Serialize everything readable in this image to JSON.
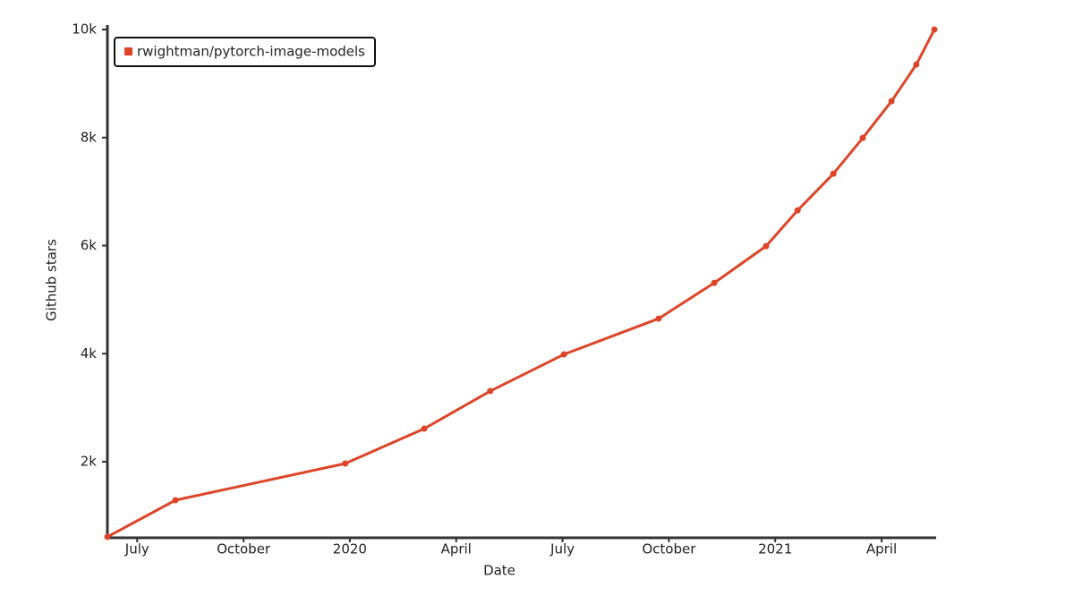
{
  "chart_data": {
    "type": "line",
    "x_label": "Date",
    "y_label": "Github stars",
    "series": [
      {
        "name": "rwightman/pytorch-image-models",
        "color": "#dd4528",
        "x": [
          -6.84,
          -4.92,
          -0.13,
          2.1,
          3.96,
          6.04,
          8.71,
          10.28,
          11.74,
          12.63,
          13.64,
          14.47,
          15.28,
          15.98,
          16.49
        ],
        "values": [
          609,
          1288,
          1967,
          2613,
          3308,
          3987,
          4649,
          5311,
          5990,
          6652,
          7331,
          7993,
          8672,
          9351,
          10000
        ]
      }
    ],
    "xlim": [
      -6.84,
      16.49
    ],
    "xticks": [
      {
        "value": -6,
        "label": "July"
      },
      {
        "value": -3,
        "label": "October"
      },
      {
        "value": 0,
        "label": "2020"
      },
      {
        "value": 3,
        "label": "April"
      },
      {
        "value": 6,
        "label": "July"
      },
      {
        "value": 9,
        "label": "October"
      },
      {
        "value": 12,
        "label": "2021"
      },
      {
        "value": 15,
        "label": "April"
      }
    ],
    "ylim": [
      609,
      10000
    ],
    "yticks": [
      {
        "value": 2000,
        "label": "2k"
      },
      {
        "value": 4000,
        "label": "4k"
      },
      {
        "value": 6000,
        "label": "6k"
      },
      {
        "value": 8000,
        "label": "8k"
      },
      {
        "value": 10000,
        "label": "10k"
      }
    ],
    "legend": "top-left"
  }
}
